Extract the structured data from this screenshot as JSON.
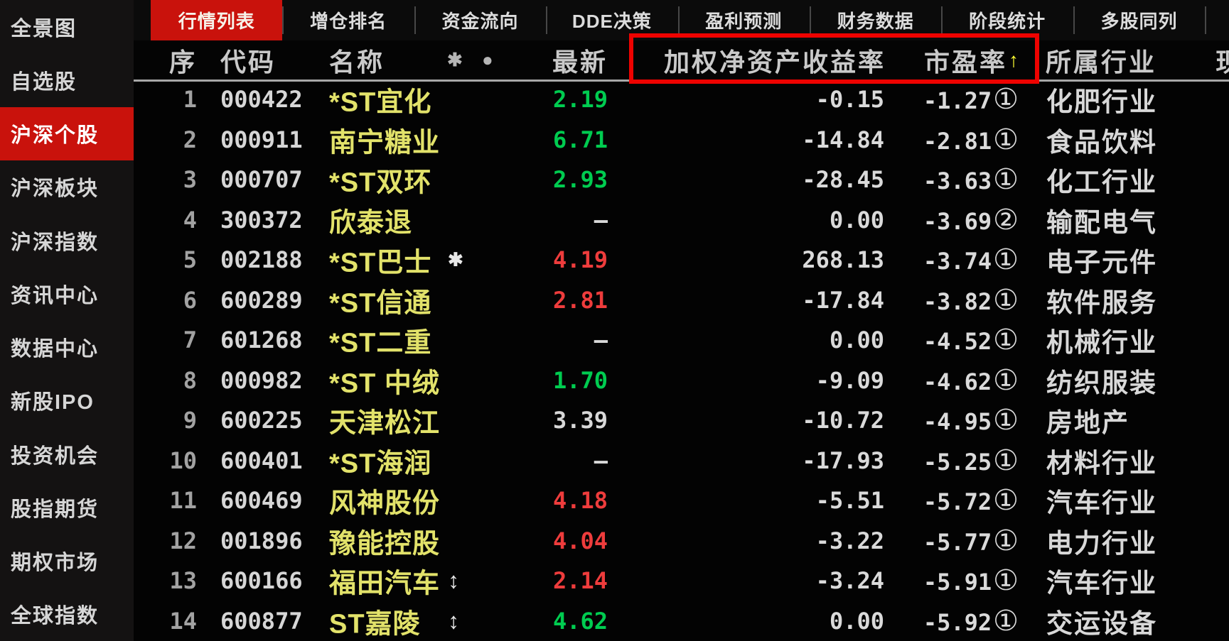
{
  "sidebar": {
    "items": [
      {
        "label": "全景图",
        "selected": false
      },
      {
        "label": "自选股",
        "selected": false
      },
      {
        "label": "沪深个股",
        "selected": true
      },
      {
        "label": "沪深板块",
        "selected": false
      },
      {
        "label": "沪深指数",
        "selected": false
      },
      {
        "label": "资讯中心",
        "selected": false
      },
      {
        "label": "数据中心",
        "selected": false
      },
      {
        "label": "新股IPO",
        "selected": false
      },
      {
        "label": "投资机会",
        "selected": false
      },
      {
        "label": "股指期货",
        "selected": false
      },
      {
        "label": "期权市场",
        "selected": false
      },
      {
        "label": "全球指数",
        "selected": false
      }
    ]
  },
  "tabs": [
    {
      "label": "行情列表",
      "active": true
    },
    {
      "label": "增仓排名",
      "active": false
    },
    {
      "label": "资金流向",
      "active": false
    },
    {
      "label": "DDE决策",
      "active": false
    },
    {
      "label": "盈利预测",
      "active": false
    },
    {
      "label": "财务数据",
      "active": false
    },
    {
      "label": "阶段统计",
      "active": false
    },
    {
      "label": "多股同列",
      "active": false
    }
  ],
  "table": {
    "headers": {
      "seq": "序",
      "code": "代码",
      "name": "名称",
      "name_icons": "✱ ●",
      "latest": "最新",
      "roe": "加权净资产收益率",
      "pe": "市盈率",
      "pe_sort_arrow": "↑",
      "industry": "所属行业",
      "partial_col": "现"
    },
    "rows": [
      {
        "seq": "1",
        "code": "000422",
        "name": "*ST宜化",
        "name_icon": "",
        "latest": "2.19",
        "latest_color": "green",
        "roe": "-0.15",
        "pe": "-1.27",
        "pe_badge": "①",
        "industry": "化肥行业"
      },
      {
        "seq": "2",
        "code": "000911",
        "name": "南宁糖业",
        "name_icon": "",
        "latest": "6.71",
        "latest_color": "green",
        "roe": "-14.84",
        "pe": "-2.81",
        "pe_badge": "①",
        "industry": "食品饮料"
      },
      {
        "seq": "3",
        "code": "000707",
        "name": "*ST双环",
        "name_icon": "",
        "latest": "2.93",
        "latest_color": "green",
        "roe": "-28.45",
        "pe": "-3.63",
        "pe_badge": "①",
        "industry": "化工行业"
      },
      {
        "seq": "4",
        "code": "300372",
        "name": "欣泰退",
        "name_icon": "",
        "latest": "—",
        "latest_color": "white",
        "roe": "0.00",
        "pe": "-3.69",
        "pe_badge": "②",
        "industry": "输配电气"
      },
      {
        "seq": "5",
        "code": "002188",
        "name": "*ST巴士",
        "name_icon": "✱",
        "latest": "4.19",
        "latest_color": "red",
        "roe": "268.13",
        "pe": "-3.74",
        "pe_badge": "①",
        "industry": "电子元件"
      },
      {
        "seq": "6",
        "code": "600289",
        "name": "*ST信通",
        "name_icon": "",
        "latest": "2.81",
        "latest_color": "red",
        "roe": "-17.84",
        "pe": "-3.82",
        "pe_badge": "①",
        "industry": "软件服务"
      },
      {
        "seq": "7",
        "code": "601268",
        "name": "*ST二重",
        "name_icon": "",
        "latest": "—",
        "latest_color": "white",
        "roe": "0.00",
        "pe": "-4.52",
        "pe_badge": "①",
        "industry": "机械行业"
      },
      {
        "seq": "8",
        "code": "000982",
        "name": "*ST 中绒",
        "name_icon": "",
        "latest": "1.70",
        "latest_color": "green",
        "roe": "-9.09",
        "pe": "-4.62",
        "pe_badge": "①",
        "industry": "纺织服装"
      },
      {
        "seq": "9",
        "code": "600225",
        "name": "天津松江",
        "name_icon": "",
        "latest": "3.39",
        "latest_color": "white",
        "roe": "-10.72",
        "pe": "-4.95",
        "pe_badge": "①",
        "industry": "房地产"
      },
      {
        "seq": "10",
        "code": "600401",
        "name": "*ST海润",
        "name_icon": "",
        "latest": "—",
        "latest_color": "white",
        "roe": "-17.93",
        "pe": "-5.25",
        "pe_badge": "①",
        "industry": "材料行业"
      },
      {
        "seq": "11",
        "code": "600469",
        "name": "风神股份",
        "name_icon": "",
        "latest": "4.18",
        "latest_color": "red",
        "roe": "-5.51",
        "pe": "-5.72",
        "pe_badge": "①",
        "industry": "汽车行业"
      },
      {
        "seq": "12",
        "code": "001896",
        "name": "豫能控股",
        "name_icon": "",
        "latest": "4.04",
        "latest_color": "red",
        "roe": "-3.22",
        "pe": "-5.77",
        "pe_badge": "①",
        "industry": "电力行业"
      },
      {
        "seq": "13",
        "code": "600166",
        "name": "福田汽车",
        "name_icon": "↕",
        "latest": "2.14",
        "latest_color": "red",
        "roe": "-3.24",
        "pe": "-5.91",
        "pe_badge": "①",
        "industry": "汽车行业"
      },
      {
        "seq": "14",
        "code": "600877",
        "name": "ST嘉陵",
        "name_icon": "↕",
        "latest": "4.62",
        "latest_color": "green",
        "roe": "0.00",
        "pe": "-5.92",
        "pe_badge": "①",
        "industry": "交运设备"
      }
    ]
  },
  "colors": {
    "accent_red": "#c9120c",
    "highlight_box_red": "#ee0200",
    "value_up_red": "#ee3c3c",
    "value_down_green": "#00cc50",
    "name_yellow": "#e2e26a",
    "sort_arrow_yellow": "#ffff33"
  }
}
